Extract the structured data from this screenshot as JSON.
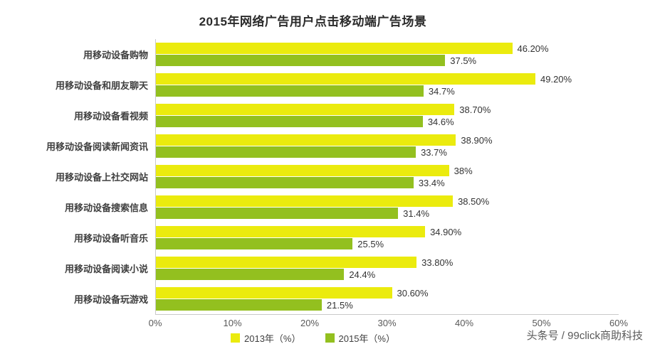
{
  "title": "2015年网络广告用户点击移动端广告场景",
  "watermark": "头条号 / 99click商助科技",
  "chart_data": {
    "type": "bar",
    "orientation": "horizontal",
    "title": "2015年网络广告用户点击移动端广告场景",
    "categories": [
      "用移动设备购物",
      "用移动设备和朋友聊天",
      "用移动设备看视频",
      "用移动设备阅读新闻资讯",
      "用移动设备上社交网站",
      "用移动设备搜索信息",
      "用移动设备听音乐",
      "用移动设备阅读小说",
      "用移动设备玩游戏"
    ],
    "series": [
      {
        "name": "2013年（%）",
        "color": "#ebeb0e",
        "values": [
          46.2,
          49.2,
          38.7,
          38.9,
          38.0,
          38.5,
          34.9,
          33.8,
          30.6
        ],
        "labels": [
          "46.20%",
          "49.20%",
          "38.70%",
          "38.90%",
          "38%",
          "38.50%",
          "34.90%",
          "33.80%",
          "30.60%"
        ]
      },
      {
        "name": "2015年（%）",
        "color": "#93c01f",
        "values": [
          37.5,
          34.7,
          34.6,
          33.7,
          33.4,
          31.4,
          25.5,
          24.4,
          21.5
        ],
        "labels": [
          "37.5%",
          "34.7%",
          "34.6%",
          "33.7%",
          "33.4%",
          "31.4%",
          "25.5%",
          "24.4%",
          "21.5%"
        ]
      }
    ],
    "xlim": [
      0,
      60
    ],
    "xticks": [
      "0%",
      "10%",
      "20%",
      "30%",
      "40%",
      "50%",
      "60%"
    ],
    "grid": false,
    "legend_position": "bottom"
  }
}
